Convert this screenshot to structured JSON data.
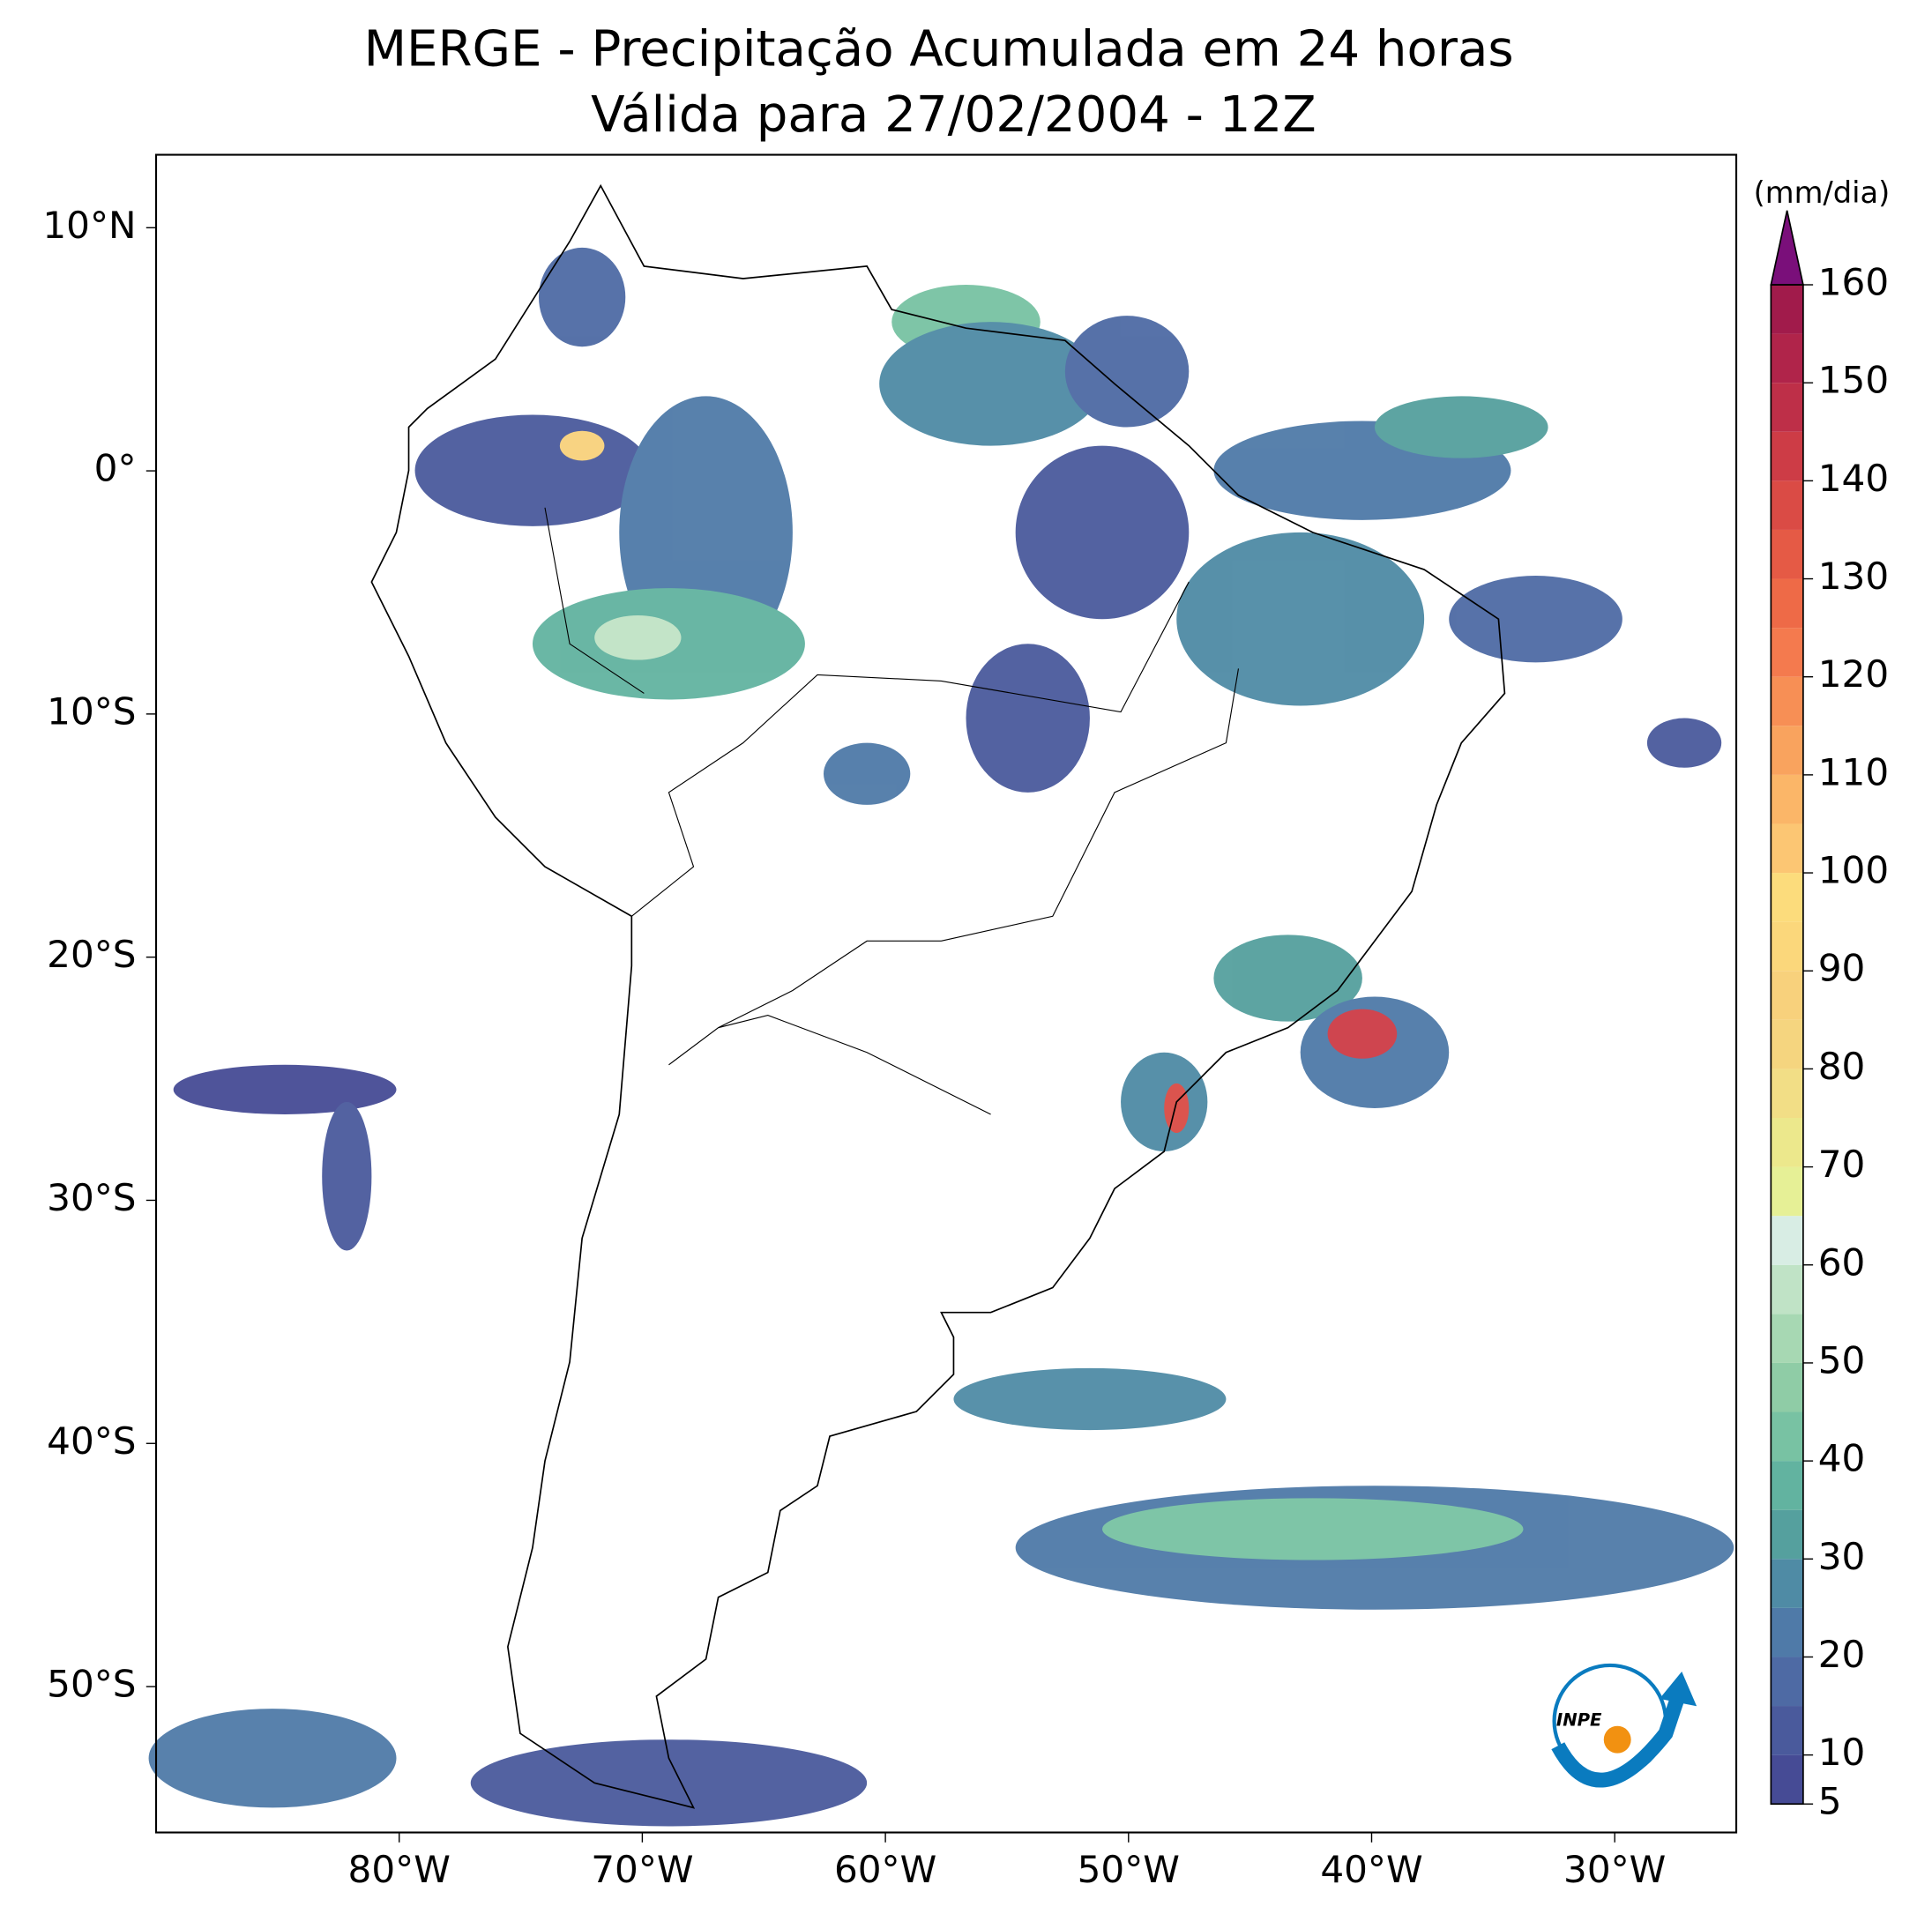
{
  "title": "MERGE - Precipitação Acumulada em 24 horas",
  "subtitle": "Válida para 27/02/2004 - 12Z",
  "map": {
    "xlim": [
      -90,
      -25
    ],
    "ylim": [
      -56,
      13
    ],
    "xticks": [
      {
        "value": -80,
        "label": "80°W"
      },
      {
        "value": -70,
        "label": "70°W"
      },
      {
        "value": -60,
        "label": "60°W"
      },
      {
        "value": -50,
        "label": "50°W"
      },
      {
        "value": -40,
        "label": "40°W"
      },
      {
        "value": -30,
        "label": "30°W"
      }
    ],
    "yticks": [
      {
        "value": 10,
        "label": "10°N"
      },
      {
        "value": 0,
        "label": "0°"
      },
      {
        "value": -10,
        "label": "10°S"
      },
      {
        "value": -20,
        "label": "20°S"
      },
      {
        "value": -30,
        "label": "30°S"
      },
      {
        "value": -40,
        "label": "40°S"
      },
      {
        "value": -50,
        "label": "50°S"
      }
    ]
  },
  "colorbar": {
    "unit": "(mm/dia)",
    "bounds": [
      5,
      10,
      15,
      20,
      25,
      30,
      35,
      40,
      45,
      50,
      55,
      60,
      65,
      70,
      75,
      80,
      85,
      90,
      95,
      100,
      105,
      110,
      115,
      120,
      125,
      130,
      135,
      140,
      145,
      150,
      155,
      160
    ],
    "colors": [
      "#464b95",
      "#4a5a9c",
      "#4e6aa4",
      "#4f7aa8",
      "#4f8ba5",
      "#55a09e",
      "#62b3a0",
      "#78c2a3",
      "#8fcca6",
      "#a7d8b3",
      "#c0e3c6",
      "#d8ede4",
      "#e6f096",
      "#ece88c",
      "#f2de86",
      "#f5d57f",
      "#f8d17c",
      "#fbd77b",
      "#fcdc7c",
      "#fcc673",
      "#fbb668",
      "#f9a35e",
      "#f78f55",
      "#f47a4e",
      "#ee6a47",
      "#e55a45",
      "#da4b45",
      "#cd3c46",
      "#be2f48",
      "#b0244a",
      "#a11b4b"
    ],
    "extend_color": "#7a0f7a",
    "ticks": [
      5,
      10,
      20,
      30,
      40,
      50,
      60,
      70,
      80,
      90,
      100,
      110,
      120,
      130,
      140,
      150,
      160
    ]
  },
  "logo": {
    "text": "INPE"
  }
}
